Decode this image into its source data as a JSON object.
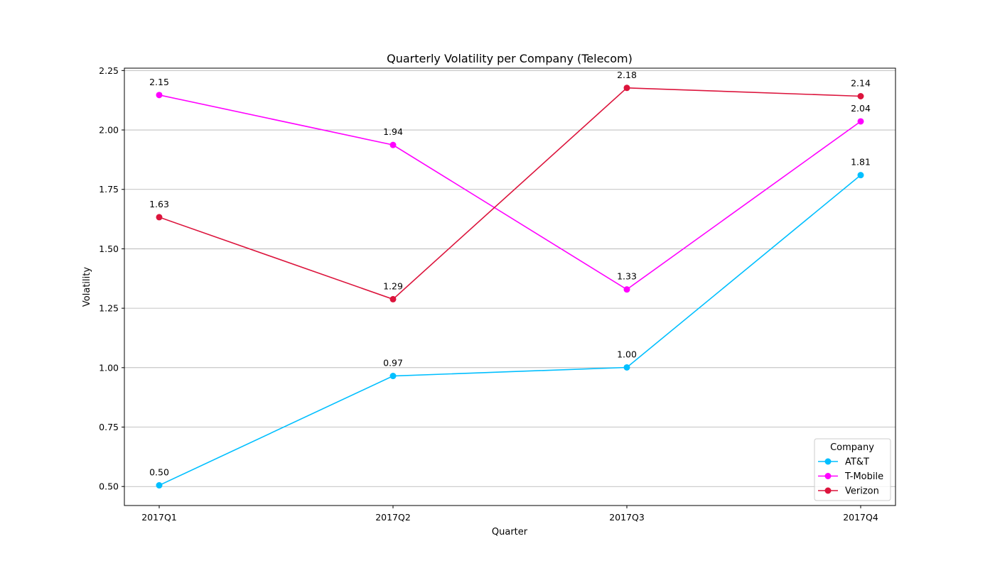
{
  "chart_data": {
    "type": "line",
    "title": "Quarterly Volatility per Company (Telecom)",
    "xlabel": "Quarter",
    "ylabel": "Volatility",
    "categories": [
      "2017Q1",
      "2017Q2",
      "2017Q3",
      "2017Q4"
    ],
    "ylim": [
      0.42,
      2.26
    ],
    "yticks": [
      0.5,
      0.75,
      1.0,
      1.25,
      1.5,
      1.75,
      2.0,
      2.25
    ],
    "ytick_labels": [
      "0.50",
      "0.75",
      "1.00",
      "1.25",
      "1.50",
      "1.75",
      "2.00",
      "2.25"
    ],
    "grid": "horizontal",
    "legend": {
      "title": "Company",
      "placement": "bottom-right"
    },
    "series": [
      {
        "name": "AT&T",
        "color": "#00bfff",
        "values": [
          0.505,
          0.965,
          1.001,
          1.81
        ],
        "labels": [
          "0.50",
          "0.97",
          "1.00",
          "1.81"
        ]
      },
      {
        "name": "T-Mobile",
        "color": "#ff00ff",
        "values": [
          2.147,
          1.937,
          1.329,
          2.036
        ],
        "labels": [
          "2.15",
          "1.94",
          "1.33",
          "2.04"
        ]
      },
      {
        "name": "Verizon",
        "color": "#dc143c",
        "values": [
          1.633,
          1.288,
          2.177,
          2.142
        ],
        "labels": [
          "1.63",
          "1.29",
          "2.18",
          "2.14"
        ]
      }
    ]
  }
}
